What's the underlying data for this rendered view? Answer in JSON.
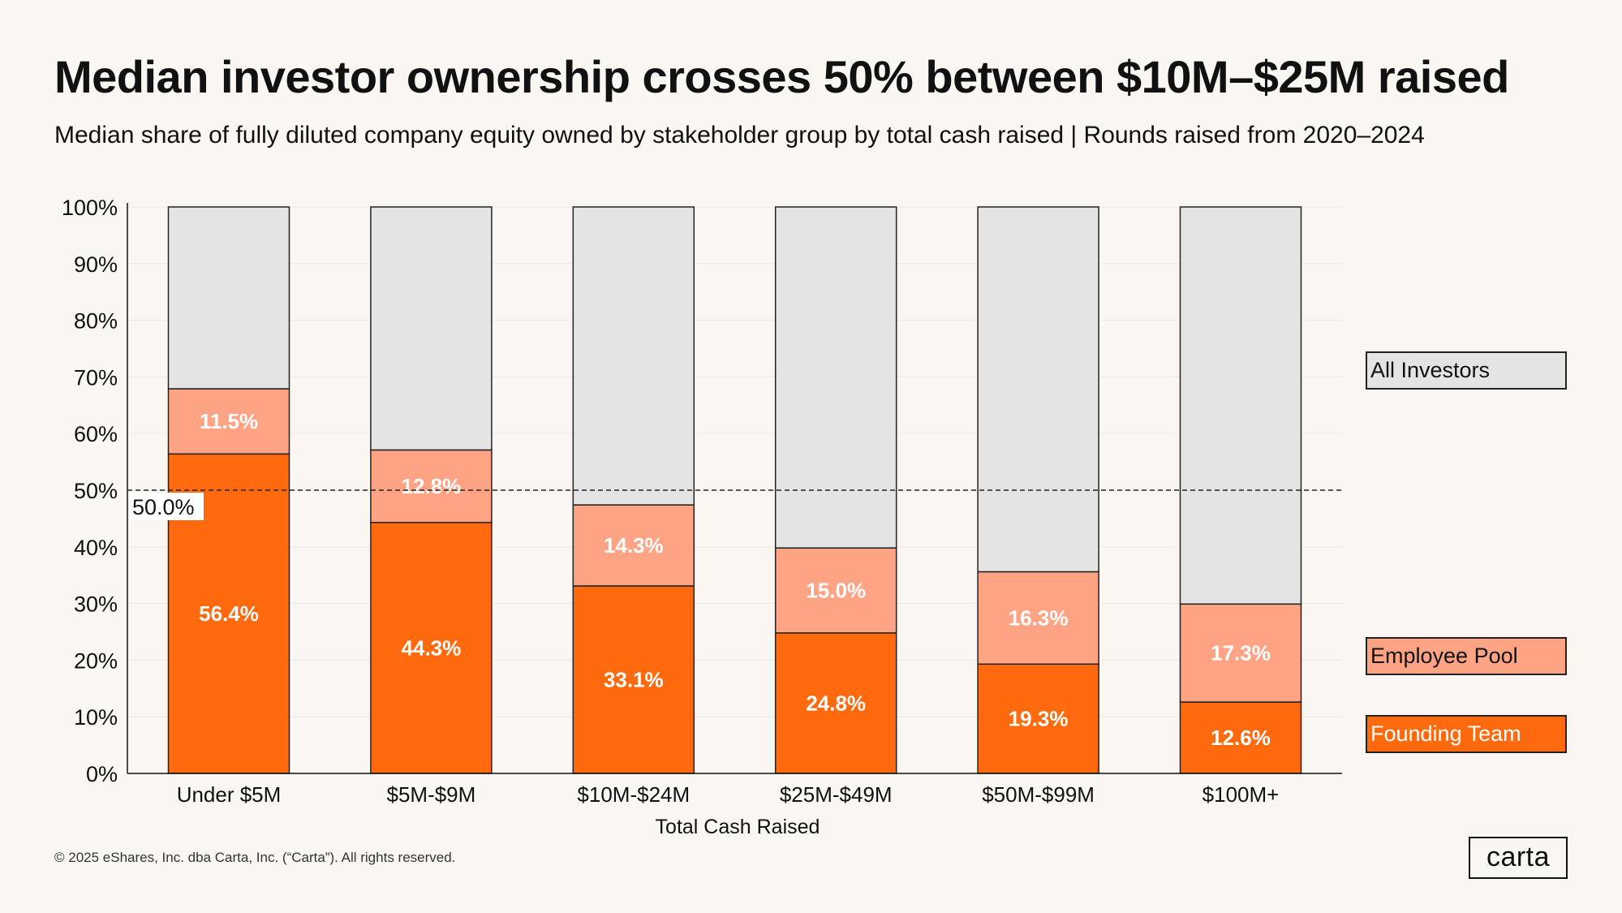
{
  "header": {
    "title": "Median investor ownership crosses 50% between $10M–$25M raised",
    "subtitle": "Median share of fully diluted company equity owned by stakeholder group by total cash raised | Rounds raised from 2020–2024"
  },
  "colors": {
    "founding_team": "#ff6a0f",
    "employee_pool": "#ffa385",
    "all_investors": "#e4e4e4",
    "background": "#faf7f2"
  },
  "chart_data": {
    "type": "bar",
    "stacked": true,
    "categories": [
      "Under $5M",
      "$5M-$9M",
      "$10M-$24M",
      "$25M-$49M",
      "$50M-$99M",
      "$100M+"
    ],
    "series": [
      {
        "name": "Founding Team",
        "values": [
          56.4,
          44.3,
          33.1,
          24.8,
          19.3,
          12.6
        ],
        "labels": [
          "56.4%",
          "44.3%",
          "33.1%",
          "24.8%",
          "19.3%",
          "12.6%"
        ]
      },
      {
        "name": "Employee Pool",
        "values": [
          11.5,
          12.8,
          14.3,
          15.0,
          16.3,
          17.3
        ],
        "labels": [
          "11.5%",
          "12.8%",
          "14.3%",
          "15.0%",
          "16.3%",
          "17.3%"
        ]
      },
      {
        "name": "All Investors",
        "values": [
          32.1,
          42.9,
          52.6,
          60.2,
          64.4,
          70.1
        ]
      }
    ],
    "xlabel": "Total Cash Raised",
    "ylabel": "",
    "ylim": [
      0,
      100
    ],
    "yticks": [
      "0%",
      "10%",
      "20%",
      "30%",
      "40%",
      "50%",
      "60%",
      "70%",
      "80%",
      "90%",
      "100%"
    ],
    "reference_line": {
      "value": 50,
      "label": "50.0%",
      "style": "dashed"
    },
    "legend": {
      "placement": "right",
      "items": [
        "All Investors",
        "Employee Pool",
        "Founding Team"
      ]
    }
  },
  "footer": {
    "copyright": "© 2025 eShares, Inc. dba Carta, Inc. (“Carta”). All rights reserved.",
    "logo": "carta"
  }
}
